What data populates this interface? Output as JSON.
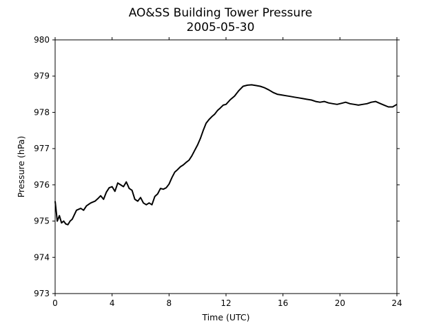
{
  "chart_data": {
    "type": "line",
    "title": "AO&SS Building Tower Pressure",
    "subtitle": "2005-05-30",
    "xlabel": "Time (UTC)",
    "ylabel": "Pressure (hPa)",
    "xlim": [
      0,
      24
    ],
    "ylim": [
      973,
      980
    ],
    "x_ticks": [
      0,
      4,
      8,
      12,
      16,
      20,
      24
    ],
    "y_ticks": [
      973,
      974,
      975,
      976,
      977,
      978,
      979,
      980
    ],
    "grid": false,
    "legend": "none",
    "series": [
      {
        "color": "#000000",
        "x": [
          0,
          0.15,
          0.3,
          0.45,
          0.6,
          0.75,
          0.9,
          1.05,
          1.2,
          1.5,
          1.8,
          2.0,
          2.2,
          2.5,
          2.8,
          3.0,
          3.2,
          3.4,
          3.6,
          3.8,
          4.0,
          4.2,
          4.4,
          4.6,
          4.8,
          5.0,
          5.2,
          5.4,
          5.6,
          5.8,
          6.0,
          6.2,
          6.4,
          6.6,
          6.8,
          7.0,
          7.2,
          7.4,
          7.6,
          7.8,
          8.0,
          8.2,
          8.4,
          8.6,
          8.8,
          9.0,
          9.2,
          9.4,
          9.6,
          9.8,
          10.0,
          10.2,
          10.4,
          10.6,
          10.8,
          11.0,
          11.2,
          11.4,
          11.6,
          11.8,
          12.0,
          12.3,
          12.6,
          12.9,
          13.2,
          13.5,
          13.8,
          14.1,
          14.4,
          14.7,
          15.0,
          15.3,
          15.6,
          15.9,
          16.2,
          16.5,
          16.8,
          17.1,
          17.4,
          17.7,
          18.0,
          18.3,
          18.6,
          18.9,
          19.2,
          19.5,
          19.8,
          20.1,
          20.4,
          20.7,
          21.0,
          21.3,
          21.6,
          21.9,
          22.2,
          22.5,
          22.8,
          23.1,
          23.4,
          23.7,
          24.0
        ],
        "y": [
          975.55,
          975.0,
          975.15,
          974.95,
          975.0,
          974.92,
          974.9,
          975.0,
          975.05,
          975.3,
          975.35,
          975.3,
          975.42,
          975.5,
          975.55,
          975.62,
          975.7,
          975.6,
          975.8,
          975.92,
          975.95,
          975.82,
          976.05,
          976.0,
          975.95,
          976.08,
          975.9,
          975.85,
          975.6,
          975.55,
          975.65,
          975.5,
          975.45,
          975.5,
          975.45,
          975.68,
          975.75,
          975.9,
          975.88,
          975.92,
          976.02,
          976.2,
          976.35,
          976.42,
          976.5,
          976.55,
          976.62,
          976.68,
          976.8,
          976.95,
          977.1,
          977.28,
          977.5,
          977.7,
          977.8,
          977.88,
          977.95,
          978.05,
          978.12,
          978.2,
          978.22,
          978.35,
          978.45,
          978.6,
          978.72,
          978.75,
          978.76,
          978.74,
          978.72,
          978.68,
          978.62,
          978.55,
          978.5,
          978.48,
          978.46,
          978.44,
          978.42,
          978.4,
          978.38,
          978.36,
          978.34,
          978.3,
          978.28,
          978.3,
          978.26,
          978.24,
          978.22,
          978.25,
          978.28,
          978.24,
          978.22,
          978.2,
          978.22,
          978.24,
          978.28,
          978.3,
          978.25,
          978.2,
          978.15,
          978.15,
          978.22
        ]
      }
    ]
  }
}
